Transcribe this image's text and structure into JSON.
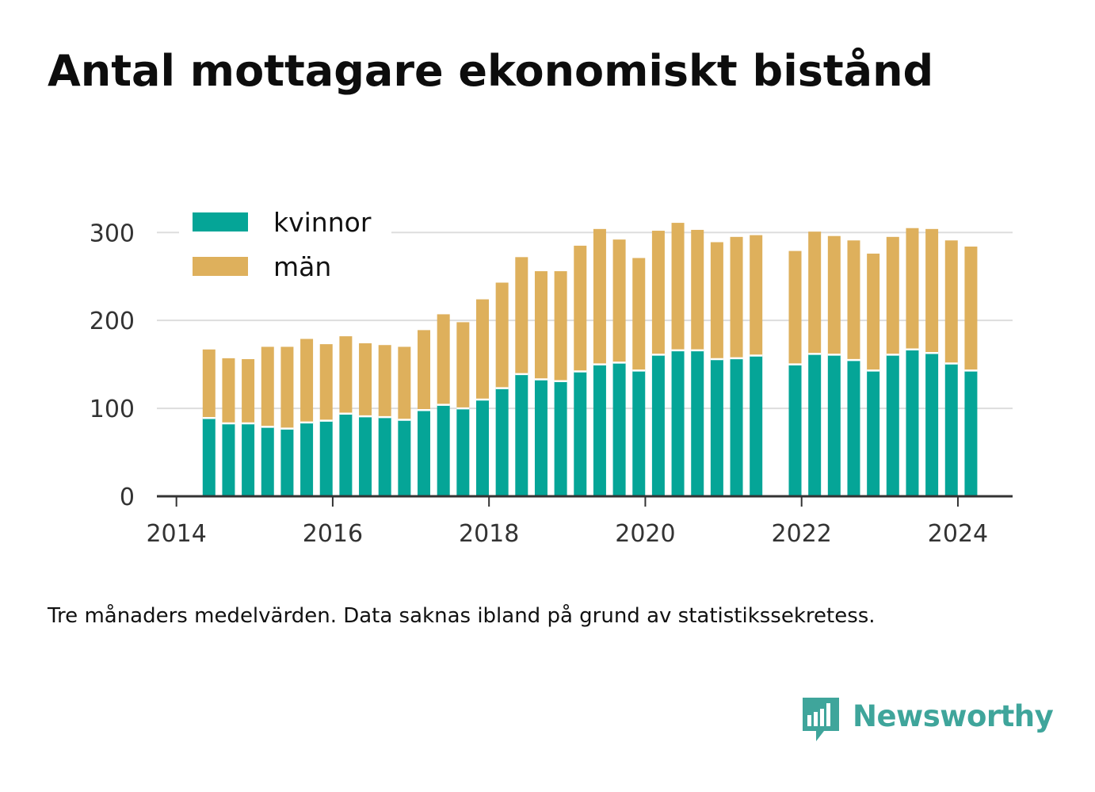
{
  "title": "Antal mottagare ekonomiskt bistånd",
  "footnote": "Tre månaders medelvärden. Data saknas ibland på grund av statistikssekretess.",
  "brand": {
    "name": "Newsworthy",
    "icon": "newsworthy-logo-icon",
    "color": "#3fa59b"
  },
  "chart_data": {
    "type": "bar",
    "stacked": true,
    "title": "Antal mottagare ekonomiskt bistånd",
    "xlabel": "",
    "ylabel": "",
    "ylim": [
      0,
      330
    ],
    "xlim": [
      2013.75,
      2024.7
    ],
    "grid": true,
    "legend_position": "top-left",
    "x_ticks": [
      "2014",
      "2016",
      "2018",
      "2020",
      "2022",
      "2024"
    ],
    "y_ticks": [
      "0",
      "100",
      "200",
      "300"
    ],
    "x": [
      2014.417,
      2014.667,
      2014.917,
      2015.167,
      2015.417,
      2015.667,
      2015.917,
      2016.167,
      2016.417,
      2016.667,
      2016.917,
      2017.167,
      2017.417,
      2017.667,
      2017.917,
      2018.167,
      2018.417,
      2018.667,
      2018.917,
      2019.167,
      2019.417,
      2019.667,
      2019.917,
      2020.167,
      2020.417,
      2020.667,
      2020.917,
      2021.167,
      2021.417,
      2021.917,
      2022.167,
      2022.417,
      2022.667,
      2022.917,
      2023.167,
      2023.417,
      2023.667,
      2023.917,
      2024.167
    ],
    "series": [
      {
        "name": "kvinnor",
        "color": "#05a597",
        "values": [
          89,
          83,
          83,
          79,
          77,
          84,
          86,
          94,
          91,
          90,
          87,
          98,
          104,
          100,
          110,
          123,
          139,
          133,
          131,
          142,
          150,
          152,
          143,
          161,
          166,
          166,
          156,
          157,
          160,
          150,
          162,
          161,
          155,
          143,
          161,
          167,
          163,
          151,
          143
        ]
      },
      {
        "name": "män",
        "color": "#deb05c",
        "values": [
          78,
          74,
          73,
          91,
          93,
          95,
          87,
          88,
          83,
          82,
          83,
          91,
          103,
          98,
          114,
          120,
          133,
          123,
          125,
          143,
          154,
          140,
          128,
          141,
          145,
          137,
          133,
          138,
          137,
          129,
          139,
          135,
          136,
          133,
          134,
          138,
          141,
          140,
          141
        ]
      }
    ]
  }
}
